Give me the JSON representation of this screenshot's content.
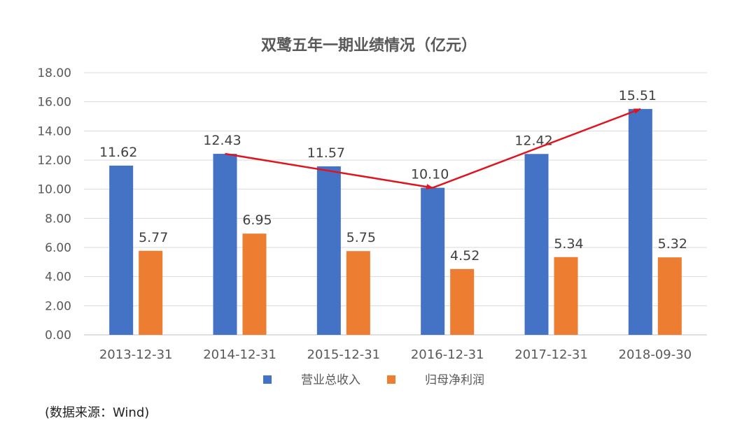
{
  "chart_data": {
    "type": "bar",
    "title": "双鹭五年一期业绩情况（亿元）",
    "categories": [
      "2013-12-31",
      "2014-12-31",
      "2015-12-31",
      "2016-12-31",
      "2017-12-31",
      "2018-09-30"
    ],
    "series": [
      {
        "name": "营业总收入",
        "values": [
          11.62,
          12.43,
          11.57,
          10.1,
          12.42,
          15.51
        ],
        "color": "#4472C4",
        "labels": [
          "11.62",
          "12.43",
          "11.57",
          "10.10",
          "12.42",
          "15.51"
        ]
      },
      {
        "name": "归母净利润",
        "values": [
          5.77,
          6.95,
          5.75,
          4.52,
          5.34,
          5.32
        ],
        "color": "#ED7D31",
        "labels": [
          "5.77",
          "6.95",
          "5.75",
          "4.52",
          "5.34",
          "5.32"
        ]
      }
    ],
    "ylim": [
      0,
      18
    ],
    "yticks": [
      "0.00",
      "2.00",
      "4.00",
      "6.00",
      "8.00",
      "10.00",
      "12.00",
      "14.00",
      "16.00",
      "18.00"
    ],
    "ytick_step": 2,
    "grid": true,
    "legend_position": "bottom",
    "annotation_arrows": {
      "color": "#E0141E",
      "points": [
        {
          "category": "2014-12-31",
          "value": 12.43
        },
        {
          "category": "2016-12-31",
          "value": 10.1
        },
        {
          "category": "2018-09-30",
          "value": 15.51
        }
      ]
    }
  },
  "source_note": "(数据来源：Wind)"
}
